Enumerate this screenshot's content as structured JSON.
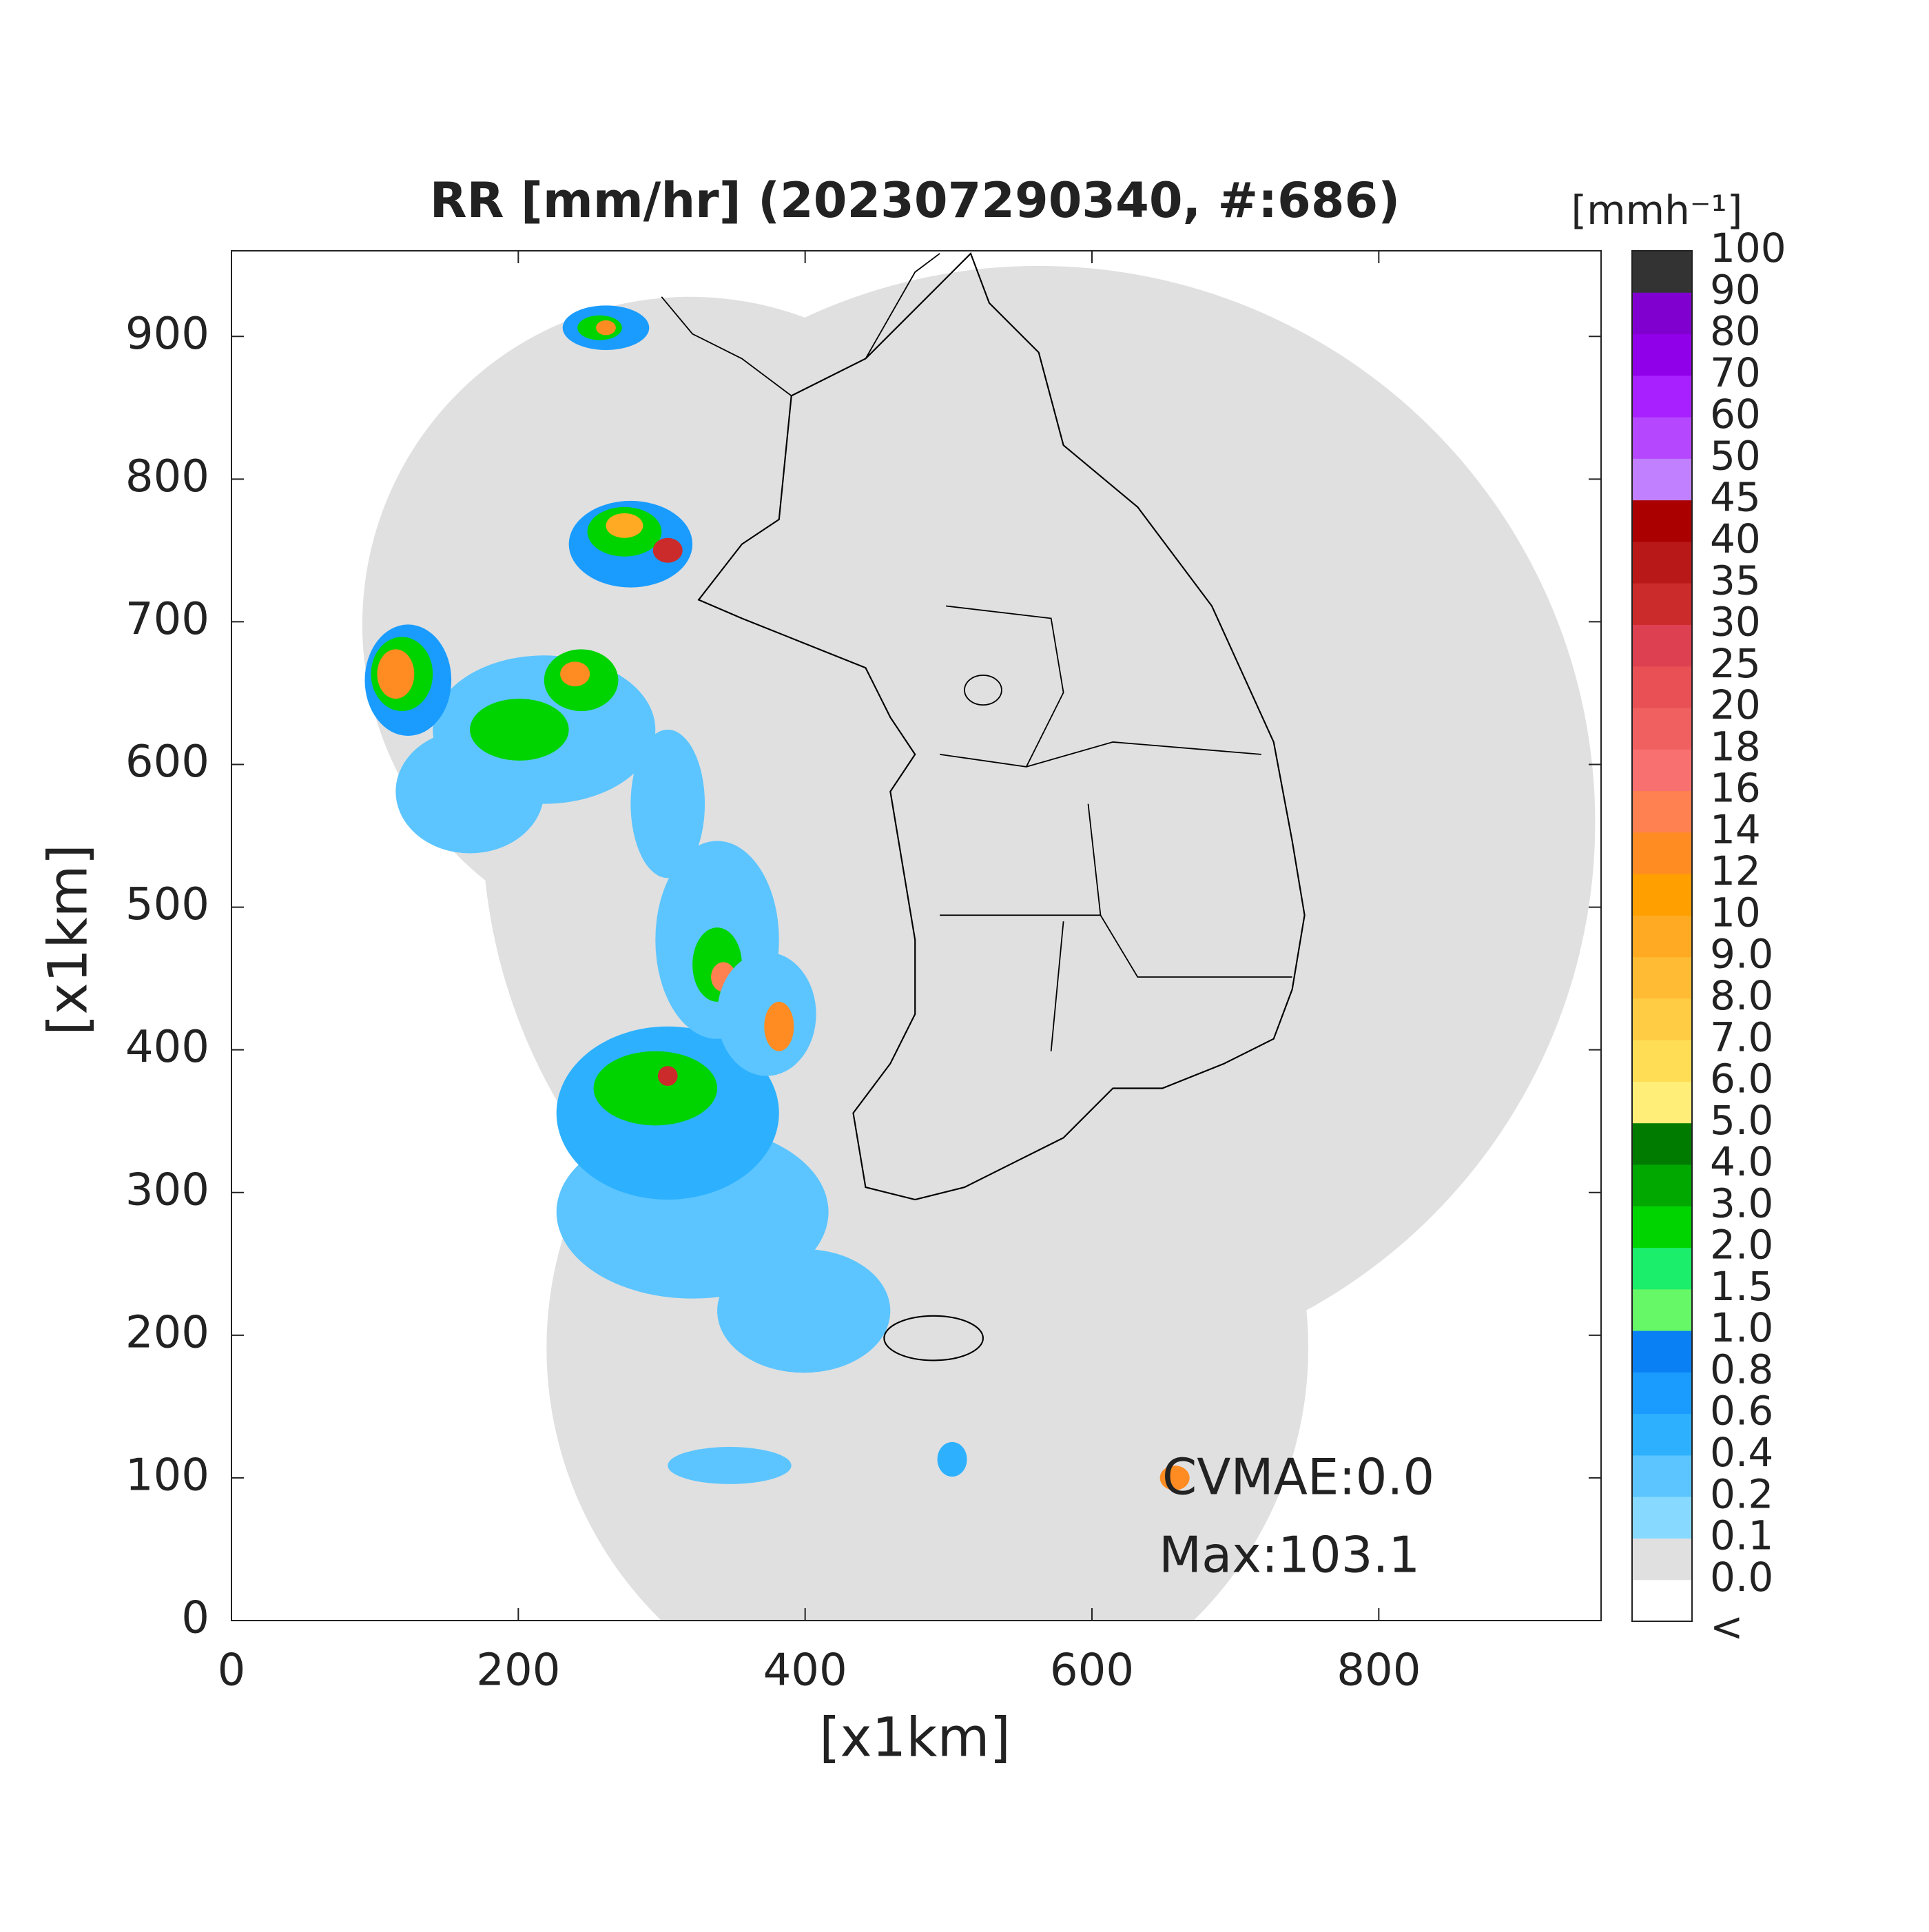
{
  "map": {
    "title": "RR [mm/hr] (202307290340, #:686)",
    "x_label": "[x1km]",
    "y_label": "[x1km]",
    "xlim": [
      0,
      955
    ],
    "ylim": [
      0,
      960
    ],
    "xticks": [
      0,
      200,
      400,
      600,
      800
    ],
    "yticks": [
      0,
      100,
      200,
      300,
      400,
      500,
      600,
      700,
      800,
      900
    ],
    "colorbar": {
      "unit_label": "[mmh⁻¹]",
      "below_label": "<",
      "below_color": "#ffffff",
      "levels": [
        {
          "value": 0,
          "label": "0.0"
        },
        0.1,
        0.2,
        0.4,
        0.6,
        0.8,
        {
          "value": 1,
          "label": "1.0"
        },
        1.5,
        {
          "value": 2,
          "label": "2.0"
        },
        {
          "value": 3,
          "label": "3.0"
        },
        {
          "value": 4,
          "label": "4.0"
        },
        {
          "value": 5,
          "label": "5.0"
        },
        {
          "value": 6,
          "label": "6.0"
        },
        {
          "value": 7,
          "label": "7.0"
        },
        {
          "value": 8,
          "label": "8.0"
        },
        {
          "value": 9,
          "label": "9.0"
        },
        10,
        12,
        14,
        16,
        18,
        20,
        25,
        30,
        35,
        40,
        45,
        50,
        60,
        70,
        80,
        90,
        100
      ],
      "colors": [
        "#e0e0e0",
        "#88d9ff",
        "#5cc5ff",
        "#2db1ff",
        "#1a9cff",
        "#0a80f5",
        "#66f866",
        "#1aee6a",
        "#00d400",
        "#00a800",
        "#007b00",
        "#ffee77",
        "#ffdd55",
        "#ffcc44",
        "#ffbb33",
        "#ffaa22",
        "#ffa000",
        "#ff8c22",
        "#ff8050",
        "#f87070",
        "#f06060",
        "#e85055",
        "#dd4050",
        "#cc2b2b",
        "#b81818",
        "#aa0000",
        "#c180ff",
        "#b548ff",
        "#a820ff",
        "#9000e8",
        "#8000d0",
        "#333333"
      ]
    },
    "annotations": {
      "cvmae": "CVMAE:0.0",
      "max": "Max:103.1"
    }
  }
}
